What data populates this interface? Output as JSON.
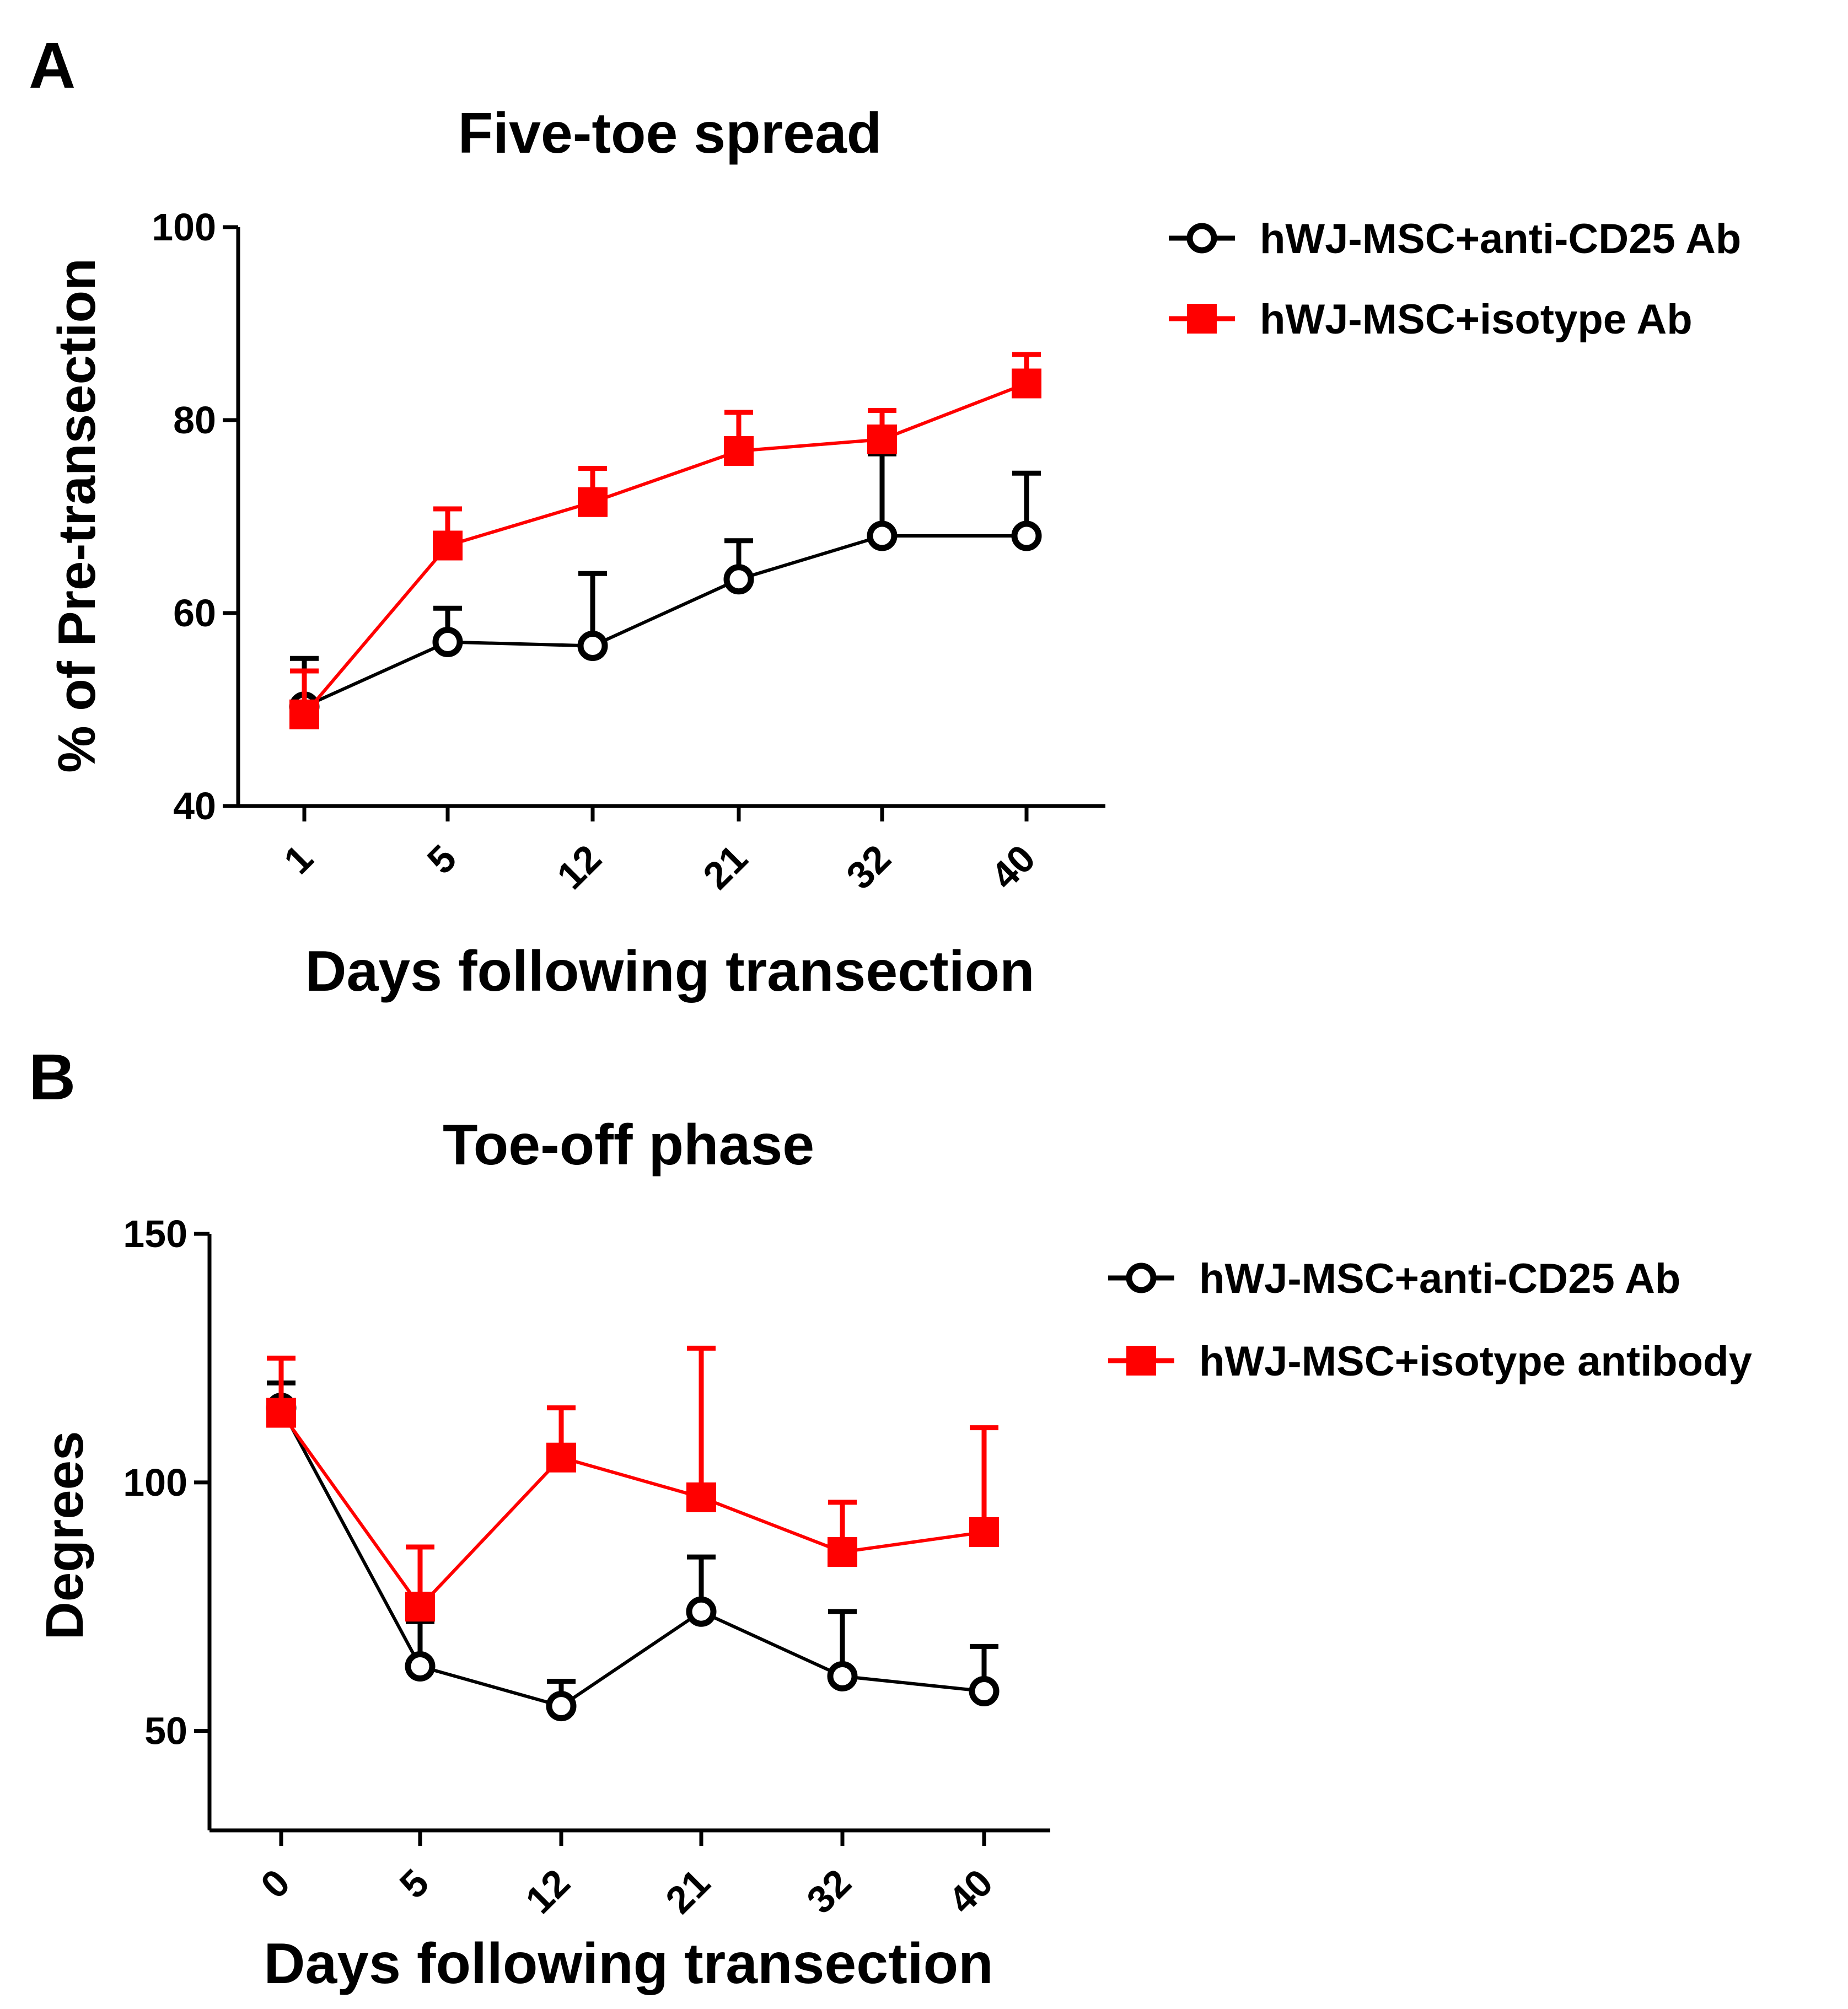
{
  "panels": {
    "a": "A",
    "b": "B"
  },
  "colors": {
    "series1": "#000000",
    "series2": "#ff0000",
    "axis": "#000000"
  },
  "chart_data": [
    {
      "type": "line",
      "title": "Five-toe spread",
      "xlabel": "Days following transection",
      "ylabel": "% of Pre-transection",
      "categories": [
        "1",
        "5",
        "12",
        "21",
        "32",
        "40"
      ],
      "ylim": [
        40,
        100
      ],
      "yticks": [
        40,
        60,
        80,
        100
      ],
      "legend_position": "right",
      "series": [
        {
          "name": "hWJ-MSC+anti-CD25 Ab",
          "marker": "open-circle",
          "color": "#000000",
          "values": [
            50.3,
            57.0,
            56.6,
            63.5,
            68.0,
            68.0
          ],
          "errors": [
            5.0,
            3.5,
            7.5,
            4.0,
            8.5,
            6.5
          ]
        },
        {
          "name": "hWJ-MSC+isotype Ab",
          "marker": "filled-square",
          "color": "#ff0000",
          "values": [
            49.5,
            67.0,
            71.5,
            76.8,
            78.0,
            83.8
          ],
          "errors": [
            4.5,
            3.8,
            3.5,
            4.0,
            3.0,
            3.0
          ]
        }
      ]
    },
    {
      "type": "line",
      "title": "Toe-off phase",
      "xlabel": "Days following transection",
      "ylabel": "Degrees",
      "categories": [
        "0",
        "5",
        "12",
        "21",
        "32",
        "40"
      ],
      "ylim": [
        30,
        150
      ],
      "yticks": [
        50,
        100,
        150
      ],
      "legend_position": "right",
      "series": [
        {
          "name": "hWJ-MSC+anti-CD25 Ab",
          "marker": "open-circle",
          "color": "#000000",
          "values": [
            115,
            63,
            55,
            74,
            61,
            58
          ],
          "errors": [
            5,
            9,
            5,
            11,
            13,
            9
          ]
        },
        {
          "name": "hWJ-MSC+isotype antibody",
          "marker": "filled-square",
          "color": "#ff0000",
          "values": [
            114,
            75,
            105,
            97,
            86,
            90
          ],
          "errors": [
            11,
            12,
            10,
            30,
            10,
            21
          ]
        }
      ]
    }
  ]
}
